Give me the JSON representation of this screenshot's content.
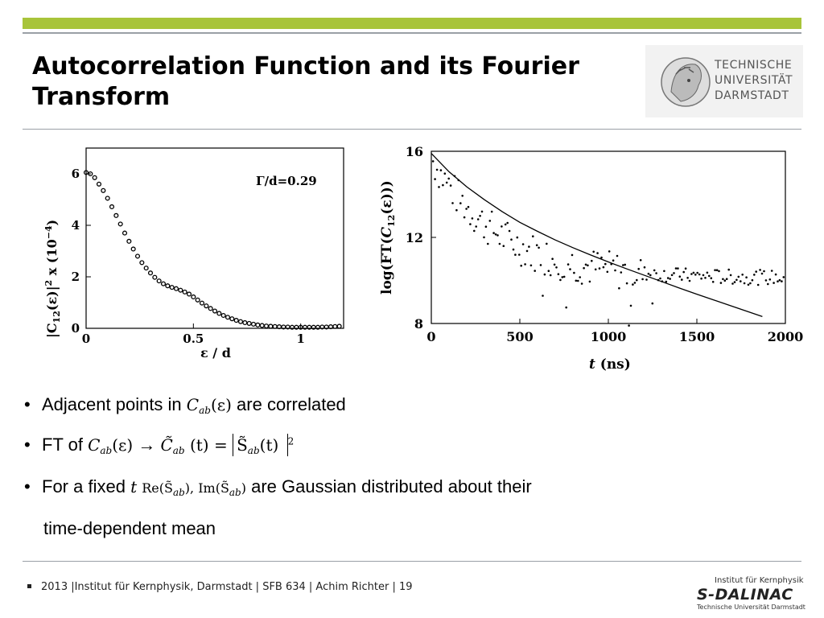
{
  "slide": {
    "title": "Autocorrelation Function and its Fourier Transform",
    "accent_color": "#a8c43a"
  },
  "logo": {
    "line1": "TECHNISCHE",
    "line2": "UNIVERSITÄT",
    "line3": "DARMSTADT"
  },
  "chart_data": [
    {
      "type": "scatter",
      "ylabel_parts": [
        "|C",
        "12",
        "(ε)|",
        "2",
        " x (10",
        "−4",
        ")"
      ],
      "xlabel": "ε / d",
      "annotation": "Γ/d=0.29",
      "xlim": [
        0,
        1.2
      ],
      "ylim": [
        0,
        7
      ],
      "xticks": [
        0,
        0.5,
        1
      ],
      "xtick_labels": [
        "0",
        "0.5",
        "1"
      ],
      "yticks": [
        0,
        2,
        4,
        6
      ],
      "ytick_labels": [
        "0",
        "2",
        "4",
        "6"
      ],
      "x": [
        0,
        0.02,
        0.04,
        0.06,
        0.08,
        0.1,
        0.12,
        0.14,
        0.16,
        0.18,
        0.2,
        0.22,
        0.24,
        0.26,
        0.28,
        0.3,
        0.32,
        0.34,
        0.36,
        0.38,
        0.4,
        0.42,
        0.44,
        0.46,
        0.48,
        0.5,
        0.52,
        0.54,
        0.56,
        0.58,
        0.6,
        0.62,
        0.64,
        0.66,
        0.68,
        0.7,
        0.72,
        0.74,
        0.76,
        0.78,
        0.8,
        0.82,
        0.84,
        0.86,
        0.88,
        0.9,
        0.92,
        0.94,
        0.96,
        0.98,
        1.0,
        1.02,
        1.04,
        1.06,
        1.08,
        1.1,
        1.12,
        1.14,
        1.16,
        1.18
      ],
      "y": [
        6.05,
        6.0,
        5.85,
        5.6,
        5.35,
        5.05,
        4.72,
        4.38,
        4.05,
        3.7,
        3.38,
        3.08,
        2.8,
        2.55,
        2.34,
        2.15,
        1.98,
        1.84,
        1.73,
        1.65,
        1.59,
        1.54,
        1.48,
        1.41,
        1.33,
        1.22,
        1.1,
        0.98,
        0.87,
        0.77,
        0.67,
        0.58,
        0.5,
        0.43,
        0.37,
        0.31,
        0.26,
        0.22,
        0.19,
        0.16,
        0.13,
        0.11,
        0.09,
        0.08,
        0.07,
        0.06,
        0.05,
        0.05,
        0.04,
        0.04,
        0.04,
        0.04,
        0.04,
        0.04,
        0.04,
        0.05,
        0.05,
        0.06,
        0.07,
        0.08
      ]
    },
    {
      "type": "scatter",
      "ylabel_parts": [
        "log(FT(",
        "C",
        "12",
        "(ε)))"
      ],
      "xlabel_parts": [
        "t",
        " (ns)"
      ],
      "xlim": [
        0,
        2000
      ],
      "ylim": [
        8,
        16
      ],
      "xticks": [
        0,
        500,
        1000,
        1500,
        2000
      ],
      "xtick_labels": [
        "0",
        "500",
        "1000",
        "1500",
        "2000"
      ],
      "yticks": [
        8,
        12,
        16
      ],
      "ytick_labels": [
        "8",
        "12",
        "16"
      ],
      "fit_line": {
        "x": [
          0,
          100,
          200,
          300,
          400,
          500,
          600,
          700,
          800,
          900,
          1000,
          1100,
          1200,
          1300,
          1400,
          1500,
          1600,
          1700,
          1800,
          1870
        ],
        "y": [
          15.9,
          15.05,
          14.35,
          13.75,
          13.2,
          12.7,
          12.28,
          11.88,
          11.52,
          11.18,
          10.86,
          10.55,
          10.25,
          9.95,
          9.65,
          9.36,
          9.08,
          8.8,
          8.52,
          8.32
        ]
      },
      "points_trend": {
        "x_start": 10,
        "x_end": 1990,
        "count": 180,
        "description_ref": "noisy decay from ~16 to ~10"
      }
    }
  ],
  "bullets": [
    {
      "text_before": "Adjacent points in",
      "math": "C",
      "math_sub": "ab",
      "math_after": "(ε)",
      "text_after": "are correlated"
    },
    {
      "text_before": "FT of",
      "math": "C",
      "math_sub": "ab",
      "math_after": "(ε)",
      "arrow": "→",
      "formula_lhs": "C̃",
      "formula_lhs_sub": "ab",
      "formula_mid": "(t) =",
      "formula_rhs": "S̃",
      "formula_rhs_sub": "ab",
      "formula_rhs_after": "(t)",
      "formula_exp": "2"
    },
    {
      "text_before": "For a fixed",
      "math": "t",
      "math_expr": "Re(S̃",
      "math_expr_sub": "ab",
      "math_expr_mid": "), Im(S̃",
      "math_expr_sub2": "ab",
      "math_expr_end": ")",
      "text_after": "are Gaussian distributed about their"
    },
    {
      "text_continued": "time-dependent mean"
    }
  ],
  "footer": {
    "text": "2013 |Institut für Kernphysik, Darmstadt  |  SFB 634 | Achim Richter | 19"
  },
  "dalinac": {
    "small": "Institut für Kernphysik",
    "big": "S-DALINAC",
    "sub": "Technische Universität Darmstadt"
  }
}
